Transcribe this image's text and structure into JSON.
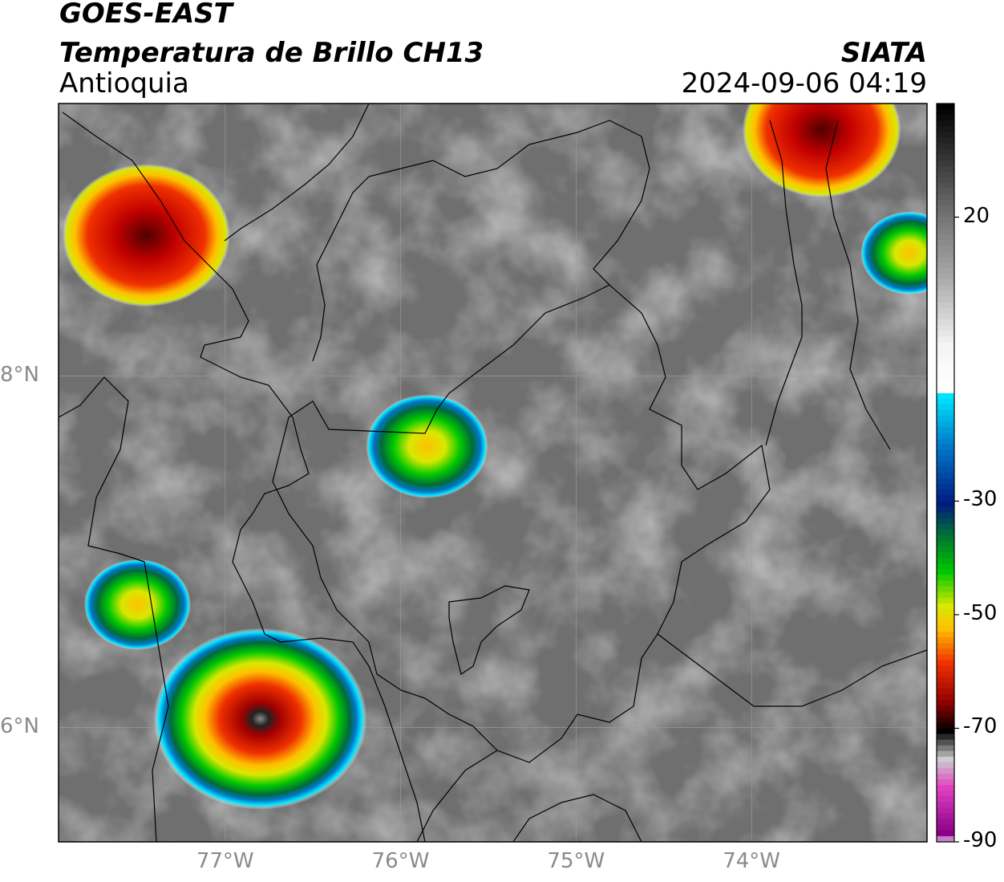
{
  "header": {
    "satellite": "GOES-EAST",
    "product": "Temperatura de Brillo CH13",
    "region": "Antioquia",
    "brand": "SIATA",
    "timestamp": "2024-09-06 04:19"
  },
  "map": {
    "lon_range": [
      -77.95,
      -73.0
    ],
    "lat_range": [
      5.35,
      9.55
    ],
    "gridlines": true,
    "lon_ticks": [
      {
        "value": -77,
        "label": "77°W"
      },
      {
        "value": -76,
        "label": "76°W"
      },
      {
        "value": -75,
        "label": "75°W"
      },
      {
        "value": -74,
        "label": "74°W"
      }
    ],
    "lat_ticks": [
      {
        "value": 8,
        "label": "8°N"
      },
      {
        "value": 6,
        "label": "6°N"
      }
    ],
    "storm_cells": [
      {
        "lon": -77.45,
        "lat": 8.8,
        "min_temp": -65
      },
      {
        "lon": -75.85,
        "lat": 7.6,
        "min_temp": -50
      },
      {
        "lon": -76.8,
        "lat": 6.05,
        "min_temp": -80
      },
      {
        "lon": -73.6,
        "lat": 9.4,
        "min_temp": -62
      },
      {
        "lon": -73.1,
        "lat": 8.7,
        "min_temp": -42
      },
      {
        "lon": -77.5,
        "lat": 6.7,
        "min_temp": -45
      }
    ]
  },
  "colorbar": {
    "label_ticks": [
      {
        "value": 20,
        "label": "20"
      },
      {
        "value": -30,
        "label": "-30"
      },
      {
        "value": -50,
        "label": "-50"
      },
      {
        "value": -70,
        "label": "-70"
      },
      {
        "value": -90,
        "label": "-90"
      }
    ],
    "stops": [
      {
        "value": 40,
        "color": "#000000"
      },
      {
        "value": 30,
        "color": "#3a3a3a"
      },
      {
        "value": 20,
        "color": "#777777"
      },
      {
        "value": 10,
        "color": "#a8a8a8"
      },
      {
        "value": -2,
        "color": "#f4f4f4"
      },
      {
        "value": -10,
        "color": "#ffffff"
      },
      {
        "value": -11,
        "color": "#00e5ff"
      },
      {
        "value": -20,
        "color": "#0077c8"
      },
      {
        "value": -30,
        "color": "#001b80"
      },
      {
        "value": -35,
        "color": "#006a3a"
      },
      {
        "value": -42,
        "color": "#00c800"
      },
      {
        "value": -48,
        "color": "#d8e800"
      },
      {
        "value": -52,
        "color": "#ffc000"
      },
      {
        "value": -58,
        "color": "#f03000"
      },
      {
        "value": -65,
        "color": "#900000"
      },
      {
        "value": -70,
        "color": "#000000"
      },
      {
        "value": -75,
        "color": "#cccccc"
      },
      {
        "value": -80,
        "color": "#e040c0"
      },
      {
        "value": -88,
        "color": "#8a0088"
      },
      {
        "value": -90,
        "color": "#ffffff"
      }
    ]
  }
}
